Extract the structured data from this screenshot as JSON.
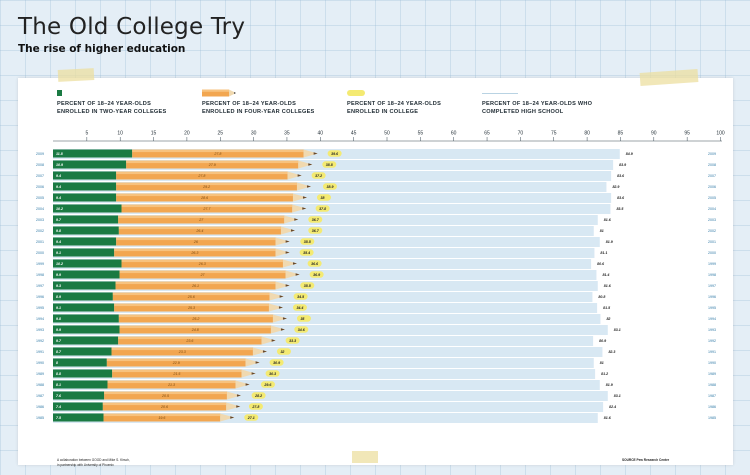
{
  "header": {
    "title": "The Old College Try",
    "subtitle": "The rise of higher education"
  },
  "footer": {
    "credit_line1": "A collaboration between GOOD and Mike S. Kirsch,",
    "credit_line2": "in partnership with University of Phoenix",
    "source": "SOURCE Pew Research Center"
  },
  "colors": {
    "two_year": "#1a7a43",
    "four_year": "#f2a650",
    "enrolled": "#f4ea72",
    "high_school": "#d8e8f3"
  },
  "chart_data": {
    "type": "bar",
    "title": "The Old College Try",
    "subtitle": "The rise of higher education",
    "xlim": [
      0,
      100
    ],
    "xticks": [
      5,
      10,
      15,
      20,
      25,
      30,
      35,
      40,
      45,
      50,
      55,
      60,
      65,
      70,
      75,
      80,
      85,
      90,
      95,
      100
    ],
    "legend": [
      "PERCENT OF 18–24 YEAR-OLDS ENROLLED IN TWO-YEAR COLLEGES",
      "PERCENT OF 18–24 YEAR-OLDS ENROLLED IN FOUR-YEAR COLLEGES",
      "PERCENT OF 18–24 YEAR-OLDS ENROLLED IN COLLEGE",
      "PERCENT OF 18–24 YEAR-OLDS WHO COMPLETED HIGH SCHOOL"
    ],
    "categories": [
      "2009",
      "2008",
      "2007",
      "2006",
      "2005",
      "2004",
      "2003",
      "2002",
      "2001",
      "2000",
      "1999",
      "1998",
      "1997",
      "1996",
      "1995",
      "1994",
      "1993",
      "1992",
      "1991",
      "1990",
      "1989",
      "1988",
      "1987",
      "1986",
      "1985"
    ],
    "series": [
      {
        "name": "Two-year colleges",
        "values": [
          11.8,
          10.9,
          9.4,
          9.4,
          9.4,
          10.2,
          9.7,
          9.8,
          9.4,
          9.1,
          10.2,
          9.9,
          9.3,
          8.9,
          9.1,
          9.8,
          9.9,
          9.7,
          8.7,
          8,
          8.8,
          8.1,
          7.6,
          7.4,
          7.5
        ]
      },
      {
        "name": "Four-year colleges",
        "values": [
          27.8,
          27.9,
          27.8,
          29.2,
          28.6,
          27.7,
          27,
          26.4,
          26,
          26.3,
          26.3,
          27,
          26.1,
          25.6,
          25.3,
          25.2,
          24.8,
          23.6,
          23.3,
          22.9,
          21.5,
          21.3,
          20.5,
          20.6,
          19.6
        ]
      },
      {
        "name": "Enrolled in college",
        "values": [
          39.6,
          38.8,
          37.2,
          38.9,
          38,
          37.8,
          36.7,
          36.7,
          35.5,
          35.4,
          36.6,
          36.9,
          35.5,
          34.5,
          34.4,
          35,
          34.6,
          33.3,
          32,
          30.9,
          30.3,
          29.6,
          28.2,
          27.8,
          27.1
        ]
      },
      {
        "name": "Completed high school",
        "values": [
          84.9,
          83.9,
          83.6,
          82.9,
          83.6,
          83.5,
          81.6,
          81,
          81.9,
          81.1,
          80.6,
          81.4,
          81.6,
          80.8,
          81.5,
          82,
          83.1,
          80.9,
          82.3,
          81,
          81.2,
          81.9,
          83.1,
          82.4,
          81.6
        ]
      }
    ]
  }
}
